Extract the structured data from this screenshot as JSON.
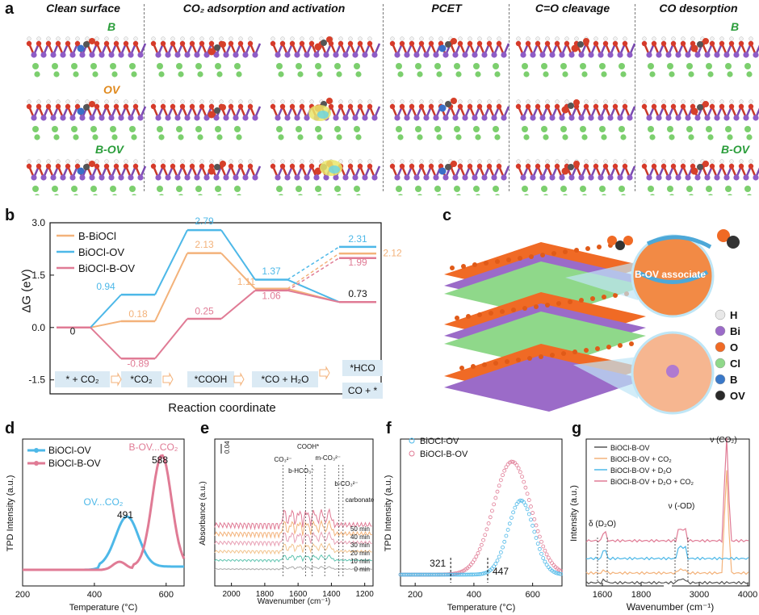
{
  "panel_labels": [
    "a",
    "b",
    "c",
    "d",
    "e",
    "f",
    "g"
  ],
  "panel_a": {
    "headers": [
      "Clean surface",
      "CO₂ adsorption and activation",
      "PCET",
      "C=O cleavage",
      "CO desorption"
    ],
    "row_labels": [
      "B",
      "OV",
      "B-OV"
    ],
    "right_labels": [
      "B",
      "B-OV"
    ],
    "colors": {
      "B": "#2a9d3a",
      "OV": "#e08a1e",
      "B-OV": "#2a9d3a"
    }
  },
  "panel_b": {
    "ylabel": "ΔG (eV)",
    "xlabel": "Reaction coordinate",
    "yticks": [
      "3.0",
      "1.5",
      "0.0",
      "-1.5"
    ],
    "steps": [
      "* + CO₂",
      "*CO₂",
      "*COOH",
      "*CO + H₂O",
      "*HCO",
      "CO + *"
    ],
    "legend": [
      {
        "name": "B-BiOCl",
        "color": "#f3b27a"
      },
      {
        "name": "BiOCl-OV",
        "color": "#4db8e8"
      },
      {
        "name": "BiOCl-B-OV",
        "color": "#e07b95"
      }
    ],
    "value_labels": [
      "0",
      "0.94",
      "0.18",
      "-0.89",
      "2.79",
      "2.13",
      "0.25",
      "1.37",
      "1.11",
      "1.06",
      "0.73",
      "2.31",
      "2.12",
      "1.99"
    ]
  },
  "chart_data": [
    {
      "type": "line",
      "panel": "b",
      "xlabel": "Reaction coordinate",
      "ylabel": "ΔG (eV)",
      "ylim": [
        -1.9,
        3.0
      ],
      "categories": [
        "* + CO₂",
        "*CO₂",
        "*COOH",
        "*CO + H₂O",
        "CO + *"
      ],
      "series": [
        {
          "name": "B-BiOCl",
          "values": [
            0,
            0.18,
            2.13,
            1.11,
            0.73
          ],
          "branch": 2.12
        },
        {
          "name": "BiOCl-OV",
          "values": [
            0,
            0.94,
            2.79,
            1.37,
            0.73
          ],
          "branch": 2.31
        },
        {
          "name": "BiOCl-B-OV",
          "values": [
            0,
            -0.89,
            0.25,
            1.06,
            0.73
          ],
          "branch": 1.99
        }
      ]
    },
    {
      "type": "line",
      "panel": "d",
      "xlabel": "Temperature (°C)",
      "ylabel": "TPD Intensity (a.u.)",
      "xlim": [
        200,
        650
      ],
      "xticks": [
        "200",
        "400",
        "600"
      ],
      "series": [
        {
          "name": "BiOCl-OV",
          "peak": 491,
          "annotation": "OV...CO₂"
        },
        {
          "name": "BiOCl-B-OV",
          "peak": 588,
          "annotation": "B-OV...CO₂"
        }
      ]
    },
    {
      "type": "line",
      "panel": "e",
      "xlabel": "Wavenumber (cm⁻¹)",
      "ylabel": "Absorbance (a.u.)",
      "xlim": [
        2100,
        1150
      ],
      "xticks": [
        "2000",
        "1800",
        "1600",
        "1400",
        "1200"
      ],
      "scale_bar": "0.04",
      "bands": [
        "CO₃²⁻",
        "COOH*",
        "b-HCO₃⁻",
        "m-CO₃²⁻",
        "b-CO₃²⁻",
        "carbonate"
      ],
      "series_names": [
        "50 min",
        "40 min",
        "30 min",
        "20 min",
        "10 min",
        "0 min"
      ]
    },
    {
      "type": "scatter",
      "panel": "f",
      "xlabel": "Temperature (°C)",
      "ylabel": "TPD Intensity (a.u.)",
      "xlim": [
        150,
        700
      ],
      "xticks": [
        "200",
        "400",
        "600"
      ],
      "series": [
        {
          "name": "BiOCl-OV",
          "onset": 447
        },
        {
          "name": "BiOCl-B-OV",
          "onset": 321
        }
      ]
    },
    {
      "type": "line",
      "panel": "g",
      "xlabel": "Wavenumber (cm⁻¹)",
      "ylabel": "Intensity (a.u.)",
      "xticks": [
        "1600",
        "1800",
        "3000",
        "4000"
      ],
      "bands": [
        "δ (D₂O)",
        "ν (-OD)",
        "ν (CO₂)"
      ],
      "series_names": [
        "BiOCl-B-OV",
        "BiOCl-B-OV + CO₂",
        "BiOCl-B-OV + D₂O",
        "BiOCl-B-OV + D₂O + CO₂"
      ]
    }
  ],
  "panel_c": {
    "callout": "B-OV associate",
    "legend": [
      {
        "name": "H",
        "color": "#e8e8e8"
      },
      {
        "name": "Bi",
        "color": "#9b6bc8"
      },
      {
        "name": "O",
        "color": "#f06a25"
      },
      {
        "name": "Cl",
        "color": "#8fd88a"
      },
      {
        "name": "B",
        "color": "#3a78c8"
      },
      {
        "name": "OV",
        "color": "#2a2a2a"
      }
    ]
  },
  "panel_d": {
    "legend": [
      "BiOCl-OV",
      "BiOCl-B-OV"
    ],
    "colors": [
      "#4db8e8",
      "#e07b95"
    ],
    "annotations": [
      "B-OV...CO₂",
      "OV...CO₂",
      "491",
      "588"
    ]
  },
  "panel_f": {
    "legend": [
      "BiOCl-OV",
      "BiOCl-B-OV"
    ],
    "annotations": [
      "321",
      "447"
    ]
  }
}
